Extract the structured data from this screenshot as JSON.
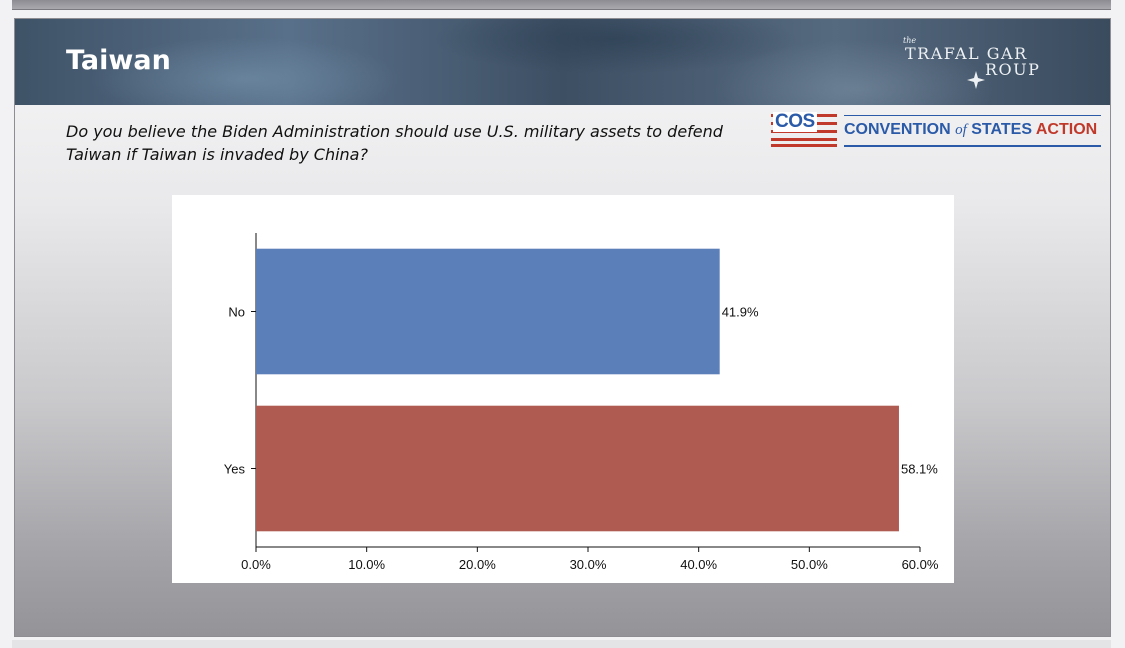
{
  "slide": {
    "title": "Taiwan",
    "question": "Do you believe the Biden Administration should use U.S. military assets to defend Taiwan if Taiwan is invaded by China?"
  },
  "logos": {
    "trafalgar": {
      "the": "the",
      "line1": "TRAFAL GAR",
      "line2": "ROUP"
    },
    "cos": {
      "abbr": "COS",
      "name_part1": "CONVENTION",
      "name_of": "of",
      "name_part2": "STATES",
      "name_action": "ACTION"
    }
  },
  "colors": {
    "no_bar": "#5b80b9",
    "yes_bar": "#b05b52",
    "cos_blue": "#2a5aa8",
    "cos_red": "#c0392b"
  },
  "chart_data": {
    "type": "bar",
    "orientation": "horizontal",
    "categories": [
      "No",
      "Yes"
    ],
    "values": [
      41.9,
      58.1
    ],
    "value_labels": [
      "41.9%",
      "58.1%"
    ],
    "xlim": [
      0,
      60
    ],
    "xticks": [
      0,
      10,
      20,
      30,
      40,
      50,
      60
    ],
    "xtick_labels": [
      "0.0%",
      "10.0%",
      "20.0%",
      "30.0%",
      "40.0%",
      "50.0%",
      "60.0%"
    ],
    "grid": false,
    "legend": "none"
  }
}
